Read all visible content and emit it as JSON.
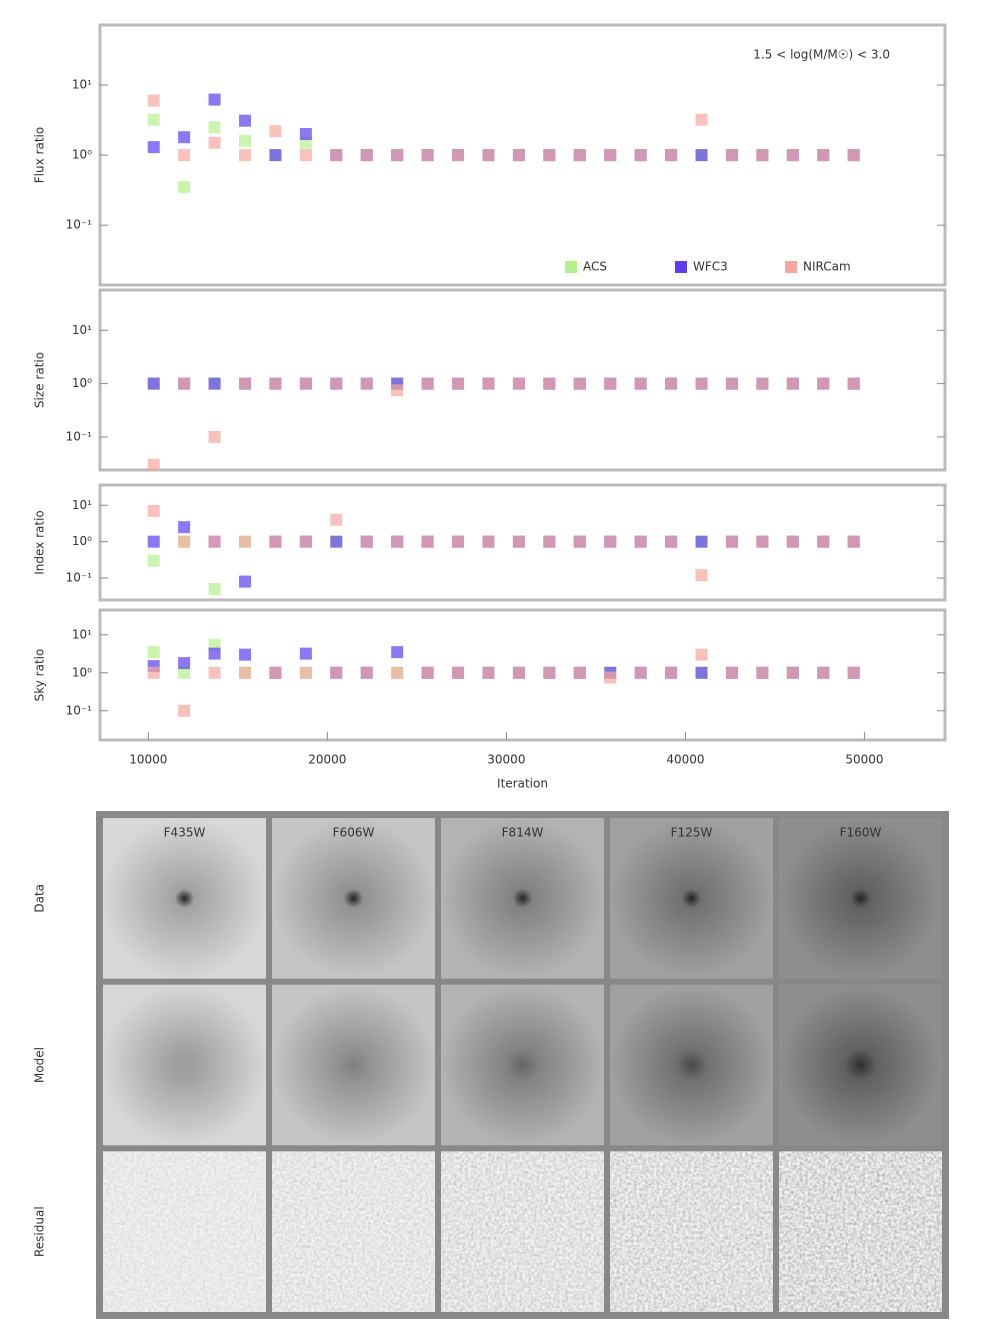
{
  "chart_data": [
    {
      "type": "scatter",
      "log_y": true,
      "ylabel": "Flux ratio",
      "annotation": "1.5 < log(M/M☉) < 3.0",
      "legend": "lower right",
      "xlim": [
        7300,
        54500
      ],
      "ylim": [
        0.014,
        72
      ],
      "yticks": [
        {
          "value": 10,
          "label": "10¹"
        },
        {
          "value": 1,
          "label": "10⁰"
        },
        {
          "value": 0.1,
          "label": "10⁻¹"
        }
      ],
      "x": [
        10300,
        12000,
        13700,
        15400,
        17100,
        18800,
        20500,
        22200,
        23900,
        25600,
        27300,
        29000,
        30700,
        32400,
        34100,
        35800,
        37500,
        39200,
        40900,
        42600,
        44300,
        46000,
        47700,
        49400
      ],
      "series": [
        {
          "name": "ACS",
          "color": "#b6ef8c",
          "values": [
            3.2,
            0.35,
            2.5,
            1.6,
            1,
            1.5,
            1,
            1,
            1,
            1,
            1,
            1,
            1,
            1,
            1,
            1,
            1,
            1,
            1,
            1,
            1,
            1,
            1,
            1
          ]
        },
        {
          "name": "WFC3",
          "color": "#5b3df0",
          "values": [
            1.3,
            1.8,
            6.2,
            3.1,
            1,
            2,
            1,
            1,
            1,
            1,
            1,
            1,
            1,
            1,
            1,
            1,
            1,
            1,
            1,
            1,
            1,
            1,
            1,
            1
          ]
        },
        {
          "name": "NIRCam",
          "color": "#f6a79f",
          "values": [
            6,
            1,
            1.5,
            1,
            2.2,
            1,
            1,
            1,
            1,
            1,
            1,
            1,
            1,
            1,
            1,
            1,
            1,
            1,
            3.2,
            1,
            1,
            1,
            1,
            1
          ]
        }
      ]
    },
    {
      "type": "scatter",
      "log_y": true,
      "ylabel": "Size ratio",
      "xlim": [
        7300,
        54500
      ],
      "ylim": [
        0.024,
        57
      ],
      "yticks": [
        {
          "value": 10,
          "label": "10¹"
        },
        {
          "value": 1,
          "label": "10⁰"
        },
        {
          "value": 0.1,
          "label": "10⁻¹"
        }
      ],
      "x": [
        10300,
        12000,
        13700,
        15400,
        17100,
        18800,
        20500,
        22200,
        23900,
        25600,
        27300,
        29000,
        30700,
        32400,
        34100,
        35800,
        37500,
        39200,
        40900,
        42600,
        44300,
        46000,
        47700,
        49400
      ],
      "series": [
        {
          "color": "#b6ef8c",
          "values": [
            1,
            1,
            1,
            1,
            1,
            1,
            1,
            1,
            1,
            1,
            1,
            1,
            1,
            1,
            1,
            1,
            1,
            1,
            1,
            1,
            1,
            1,
            1,
            1
          ]
        },
        {
          "color": "#5b3df0",
          "values": [
            1,
            1,
            1,
            1,
            1,
            1,
            1,
            1,
            1,
            1,
            1,
            1,
            1,
            1,
            1,
            1,
            1,
            1,
            1,
            1,
            1,
            1,
            1,
            1
          ]
        },
        {
          "color": "#f6a79f",
          "values": [
            0.03,
            1,
            0.1,
            1,
            1,
            1,
            1,
            1,
            0.75,
            1,
            1,
            1,
            1,
            1,
            1,
            1,
            1,
            1,
            1,
            1,
            1,
            1,
            1,
            1
          ]
        }
      ]
    },
    {
      "type": "scatter",
      "log_y": true,
      "ylabel": "Index ratio",
      "xlim": [
        7300,
        54500
      ],
      "ylim": [
        0.025,
        36
      ],
      "yticks": [
        {
          "value": 10,
          "label": "10¹"
        },
        {
          "value": 1,
          "label": "10⁰"
        },
        {
          "value": 0.1,
          "label": "10⁻¹"
        }
      ],
      "x": [
        10300,
        12000,
        13700,
        15400,
        17100,
        18800,
        20500,
        22200,
        23900,
        25600,
        27300,
        29000,
        30700,
        32400,
        34100,
        35800,
        37500,
        39200,
        40900,
        42600,
        44300,
        46000,
        47700,
        49400
      ],
      "series": [
        {
          "color": "#b6ef8c",
          "values": [
            0.3,
            1,
            0.05,
            1,
            1,
            1,
            1,
            1,
            1,
            1,
            1,
            1,
            1,
            1,
            1,
            1,
            1,
            1,
            1,
            1,
            1,
            1,
            1,
            1
          ]
        },
        {
          "color": "#5b3df0",
          "values": [
            1,
            2.5,
            1,
            0.08,
            1,
            1,
            1,
            1,
            1,
            1,
            1,
            1,
            1,
            1,
            1,
            1,
            1,
            1,
            1,
            1,
            1,
            1,
            1,
            1
          ]
        },
        {
          "color": "#f6a79f",
          "values": [
            7,
            1,
            1,
            1,
            1,
            1,
            4,
            1,
            1,
            1,
            1,
            1,
            1,
            1,
            1,
            1,
            1,
            1,
            0.12,
            1,
            1,
            1,
            1,
            1
          ]
        }
      ]
    },
    {
      "type": "scatter",
      "log_y": true,
      "ylabel": "Sky ratio",
      "xlabel": "Iteration",
      "xlim": [
        7300,
        54500
      ],
      "ylim": [
        0.017,
        45
      ],
      "xticks": [
        10000,
        20000,
        30000,
        40000,
        50000
      ],
      "yticks": [
        {
          "value": 10,
          "label": "10¹"
        },
        {
          "value": 1,
          "label": "10⁰"
        },
        {
          "value": 0.1,
          "label": "10⁻¹"
        }
      ],
      "x": [
        10300,
        12000,
        13700,
        15400,
        17100,
        18800,
        20500,
        22200,
        23900,
        25600,
        27300,
        29000,
        30700,
        32400,
        34100,
        35800,
        37500,
        39200,
        40900,
        42600,
        44300,
        46000,
        47700,
        49400
      ],
      "series": [
        {
          "color": "#b6ef8c",
          "values": [
            3.5,
            1,
            5.5,
            1,
            1,
            1,
            1,
            1,
            1,
            1,
            1,
            1,
            1,
            1,
            1,
            1,
            1,
            1,
            1,
            1,
            1,
            1,
            1,
            1
          ]
        },
        {
          "color": "#5b3df0",
          "values": [
            1.5,
            1.8,
            3.2,
            3,
            1,
            3.2,
            1,
            1,
            3.5,
            1,
            1,
            1,
            1,
            1,
            1,
            1,
            1,
            1,
            1,
            1,
            1,
            1,
            1,
            1
          ]
        },
        {
          "color": "#f6a79f",
          "values": [
            1,
            0.1,
            1,
            1,
            1,
            1,
            1,
            1,
            1,
            1,
            1,
            1,
            1,
            1,
            1,
            0.75,
            1,
            1,
            3,
            1,
            1,
            1,
            1,
            1
          ]
        }
      ]
    }
  ],
  "image_grid": {
    "rows": [
      "Data",
      "Model",
      "Residual"
    ],
    "columns": [
      "F435W",
      "F606W",
      "F814W",
      "F125W",
      "F160W"
    ]
  }
}
